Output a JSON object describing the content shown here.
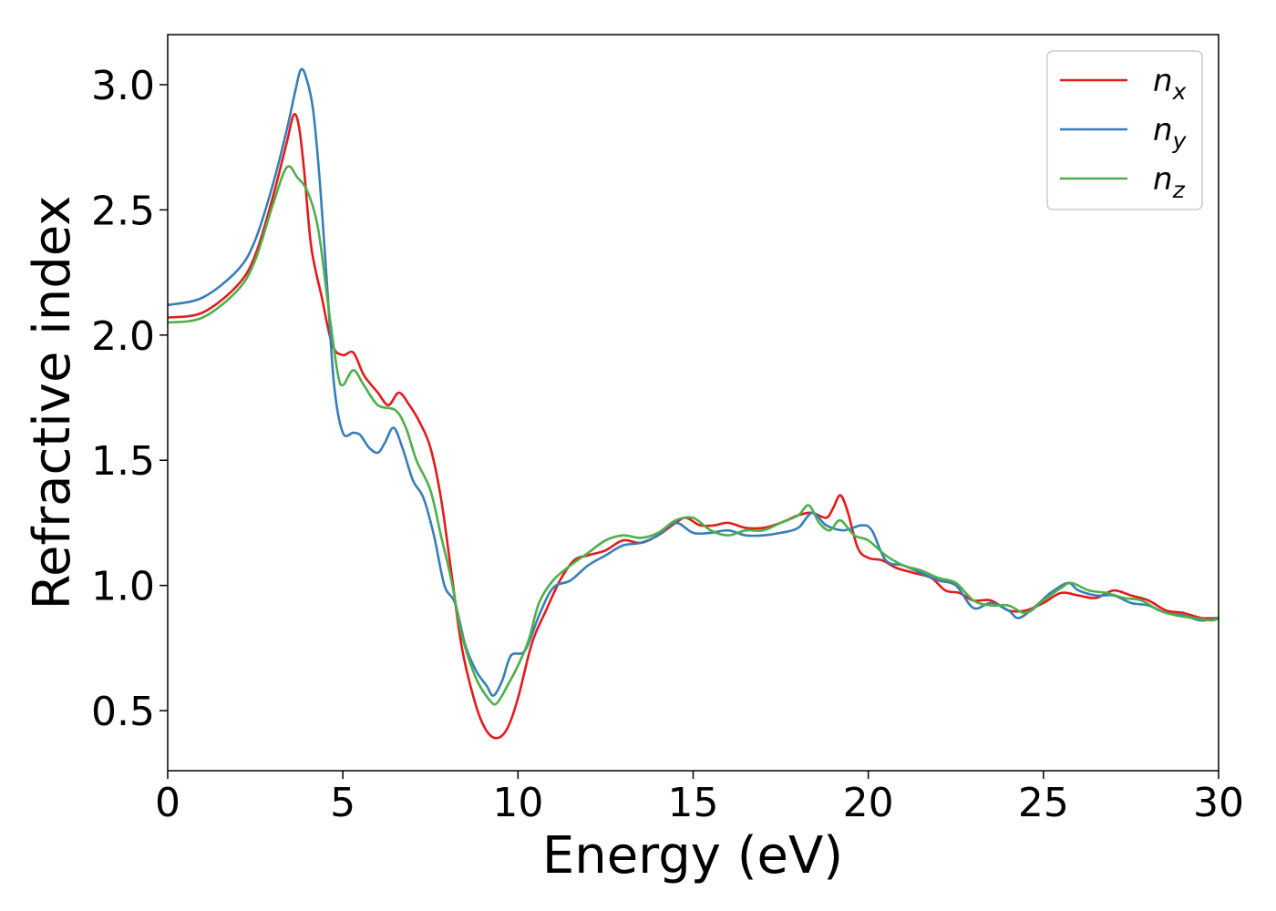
{
  "chart_data": {
    "type": "line",
    "title": "",
    "xlabel": "Energy (eV)",
    "ylabel": "Refractive index",
    "xlim": [
      0,
      30
    ],
    "ylim": [
      0.26,
      3.2
    ],
    "xticks": [
      0,
      5,
      10,
      15,
      20,
      25,
      30
    ],
    "xtick_labels": [
      "0",
      "5",
      "10",
      "15",
      "20",
      "25",
      "30"
    ],
    "yticks": [
      0.5,
      1.0,
      1.5,
      2.0,
      2.5,
      3.0
    ],
    "ytick_labels": [
      "0.5",
      "1.0",
      "1.5",
      "2.0",
      "2.5",
      "3.0"
    ],
    "grid": false,
    "legend": {
      "position": "top-right"
    },
    "series": [
      {
        "name": "n",
        "subscript": "x",
        "color": "#e41a1c",
        "points": [
          [
            0,
            2.07
          ],
          [
            1,
            2.09
          ],
          [
            2,
            2.2
          ],
          [
            2.5,
            2.32
          ],
          [
            3,
            2.55
          ],
          [
            3.4,
            2.77
          ],
          [
            3.6,
            2.88
          ],
          [
            3.75,
            2.83
          ],
          [
            3.9,
            2.65
          ],
          [
            4.1,
            2.35
          ],
          [
            4.4,
            2.15
          ],
          [
            4.7,
            1.96
          ],
          [
            5.0,
            1.92
          ],
          [
            5.3,
            1.93
          ],
          [
            5.6,
            1.84
          ],
          [
            6.0,
            1.77
          ],
          [
            6.3,
            1.72
          ],
          [
            6.6,
            1.77
          ],
          [
            6.9,
            1.72
          ],
          [
            7.2,
            1.65
          ],
          [
            7.5,
            1.55
          ],
          [
            7.8,
            1.35
          ],
          [
            8.1,
            1.05
          ],
          [
            8.4,
            0.75
          ],
          [
            8.8,
            0.52
          ],
          [
            9.1,
            0.42
          ],
          [
            9.4,
            0.39
          ],
          [
            9.7,
            0.43
          ],
          [
            10.0,
            0.55
          ],
          [
            10.4,
            0.77
          ],
          [
            10.8,
            0.9
          ],
          [
            11.2,
            1.02
          ],
          [
            11.6,
            1.1
          ],
          [
            12.0,
            1.12
          ],
          [
            12.5,
            1.14
          ],
          [
            13.0,
            1.18
          ],
          [
            13.5,
            1.17
          ],
          [
            14.0,
            1.2
          ],
          [
            14.5,
            1.25
          ],
          [
            14.8,
            1.27
          ],
          [
            15.2,
            1.24
          ],
          [
            15.6,
            1.24
          ],
          [
            16.0,
            1.25
          ],
          [
            16.5,
            1.23
          ],
          [
            17.0,
            1.23
          ],
          [
            17.5,
            1.25
          ],
          [
            18.0,
            1.28
          ],
          [
            18.4,
            1.29
          ],
          [
            18.8,
            1.27
          ],
          [
            19.0,
            1.31
          ],
          [
            19.2,
            1.36
          ],
          [
            19.4,
            1.3
          ],
          [
            19.7,
            1.15
          ],
          [
            20.0,
            1.11
          ],
          [
            20.4,
            1.1
          ],
          [
            20.8,
            1.07
          ],
          [
            21.3,
            1.05
          ],
          [
            21.8,
            1.03
          ],
          [
            22.2,
            0.98
          ],
          [
            22.6,
            0.97
          ],
          [
            23.0,
            0.94
          ],
          [
            23.5,
            0.94
          ],
          [
            24.0,
            0.9
          ],
          [
            24.5,
            0.9
          ],
          [
            25.0,
            0.93
          ],
          [
            25.5,
            0.97
          ],
          [
            26.0,
            0.96
          ],
          [
            26.5,
            0.95
          ],
          [
            27.0,
            0.98
          ],
          [
            27.5,
            0.96
          ],
          [
            28.0,
            0.94
          ],
          [
            28.5,
            0.9
          ],
          [
            29.0,
            0.89
          ],
          [
            29.5,
            0.87
          ],
          [
            30,
            0.87
          ]
        ]
      },
      {
        "name": "n",
        "subscript": "y",
        "color": "#377eb8",
        "points": [
          [
            0,
            2.12
          ],
          [
            1,
            2.15
          ],
          [
            2,
            2.26
          ],
          [
            2.5,
            2.38
          ],
          [
            3,
            2.6
          ],
          [
            3.4,
            2.82
          ],
          [
            3.65,
            2.98
          ],
          [
            3.8,
            3.06
          ],
          [
            3.95,
            3.03
          ],
          [
            4.15,
            2.9
          ],
          [
            4.35,
            2.6
          ],
          [
            4.55,
            2.2
          ],
          [
            4.75,
            1.8
          ],
          [
            5.0,
            1.61
          ],
          [
            5.3,
            1.61
          ],
          [
            5.5,
            1.6
          ],
          [
            5.75,
            1.55
          ],
          [
            6.0,
            1.53
          ],
          [
            6.2,
            1.57
          ],
          [
            6.45,
            1.63
          ],
          [
            6.7,
            1.55
          ],
          [
            7.0,
            1.42
          ],
          [
            7.3,
            1.35
          ],
          [
            7.6,
            1.2
          ],
          [
            7.9,
            1.0
          ],
          [
            8.2,
            0.93
          ],
          [
            8.5,
            0.76
          ],
          [
            8.8,
            0.66
          ],
          [
            9.1,
            0.6
          ],
          [
            9.3,
            0.56
          ],
          [
            9.55,
            0.62
          ],
          [
            9.8,
            0.72
          ],
          [
            10.2,
            0.74
          ],
          [
            10.6,
            0.88
          ],
          [
            11.0,
            0.99
          ],
          [
            11.5,
            1.02
          ],
          [
            12.0,
            1.08
          ],
          [
            12.5,
            1.12
          ],
          [
            13.0,
            1.16
          ],
          [
            13.5,
            1.17
          ],
          [
            14.0,
            1.2
          ],
          [
            14.5,
            1.25
          ],
          [
            15.0,
            1.21
          ],
          [
            15.5,
            1.21
          ],
          [
            16.0,
            1.22
          ],
          [
            16.5,
            1.2
          ],
          [
            17.0,
            1.2
          ],
          [
            17.5,
            1.21
          ],
          [
            18.0,
            1.23
          ],
          [
            18.4,
            1.29
          ],
          [
            18.8,
            1.24
          ],
          [
            19.3,
            1.22
          ],
          [
            19.8,
            1.24
          ],
          [
            20.1,
            1.22
          ],
          [
            20.5,
            1.1
          ],
          [
            21.0,
            1.08
          ],
          [
            21.5,
            1.05
          ],
          [
            22.0,
            1.02
          ],
          [
            22.5,
            1.0
          ],
          [
            23.0,
            0.91
          ],
          [
            23.5,
            0.93
          ],
          [
            24.0,
            0.9
          ],
          [
            24.3,
            0.87
          ],
          [
            24.8,
            0.92
          ],
          [
            25.2,
            0.97
          ],
          [
            25.7,
            1.01
          ],
          [
            26.0,
            0.98
          ],
          [
            26.5,
            0.96
          ],
          [
            27.0,
            0.96
          ],
          [
            27.5,
            0.93
          ],
          [
            28.0,
            0.92
          ],
          [
            28.5,
            0.89
          ],
          [
            29.0,
            0.88
          ],
          [
            29.5,
            0.86
          ],
          [
            30,
            0.87
          ]
        ]
      },
      {
        "name": "n",
        "subscript": "z",
        "color": "#4daf4a",
        "points": [
          [
            0,
            2.05
          ],
          [
            1,
            2.07
          ],
          [
            2,
            2.18
          ],
          [
            2.5,
            2.3
          ],
          [
            3,
            2.52
          ],
          [
            3.4,
            2.67
          ],
          [
            3.7,
            2.63
          ],
          [
            4.0,
            2.57
          ],
          [
            4.3,
            2.42
          ],
          [
            4.6,
            2.1
          ],
          [
            4.85,
            1.85
          ],
          [
            5.0,
            1.8
          ],
          [
            5.3,
            1.86
          ],
          [
            5.6,
            1.8
          ],
          [
            6.0,
            1.72
          ],
          [
            6.5,
            1.7
          ],
          [
            6.8,
            1.63
          ],
          [
            7.1,
            1.5
          ],
          [
            7.5,
            1.38
          ],
          [
            7.8,
            1.2
          ],
          [
            8.1,
            1.02
          ],
          [
            8.4,
            0.8
          ],
          [
            8.8,
            0.63
          ],
          [
            9.2,
            0.54
          ],
          [
            9.4,
            0.53
          ],
          [
            9.7,
            0.6
          ],
          [
            10.0,
            0.68
          ],
          [
            10.3,
            0.78
          ],
          [
            10.6,
            0.93
          ],
          [
            11.0,
            1.02
          ],
          [
            11.5,
            1.08
          ],
          [
            12.0,
            1.13
          ],
          [
            12.5,
            1.18
          ],
          [
            13.0,
            1.2
          ],
          [
            13.5,
            1.19
          ],
          [
            14.0,
            1.21
          ],
          [
            14.5,
            1.26
          ],
          [
            15.0,
            1.27
          ],
          [
            15.5,
            1.22
          ],
          [
            16.0,
            1.2
          ],
          [
            16.5,
            1.22
          ],
          [
            17.0,
            1.22
          ],
          [
            17.5,
            1.25
          ],
          [
            18.0,
            1.28
          ],
          [
            18.3,
            1.32
          ],
          [
            18.6,
            1.25
          ],
          [
            18.9,
            1.22
          ],
          [
            19.2,
            1.26
          ],
          [
            19.6,
            1.2
          ],
          [
            20.0,
            1.18
          ],
          [
            20.5,
            1.12
          ],
          [
            21.0,
            1.08
          ],
          [
            21.5,
            1.06
          ],
          [
            22.0,
            1.03
          ],
          [
            22.5,
            1.01
          ],
          [
            23.0,
            0.94
          ],
          [
            23.5,
            0.92
          ],
          [
            24.0,
            0.92
          ],
          [
            24.5,
            0.89
          ],
          [
            25.0,
            0.94
          ],
          [
            25.5,
            0.99
          ],
          [
            25.8,
            1.01
          ],
          [
            26.3,
            0.98
          ],
          [
            26.8,
            0.97
          ],
          [
            27.3,
            0.95
          ],
          [
            27.8,
            0.94
          ],
          [
            28.3,
            0.9
          ],
          [
            28.8,
            0.88
          ],
          [
            29.3,
            0.87
          ],
          [
            29.8,
            0.86
          ],
          [
            30,
            0.87
          ]
        ]
      }
    ]
  }
}
